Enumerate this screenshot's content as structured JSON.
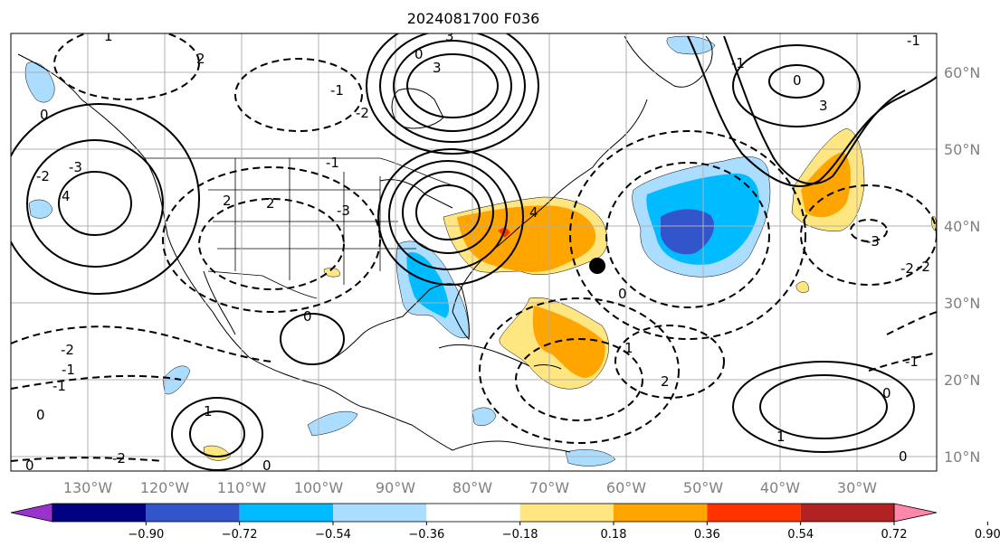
{
  "title": "2024081700 F036",
  "lon_labels": [
    "130°W",
    "120°W",
    "110°W",
    "100°W",
    "90°W",
    "80°W",
    "70°W",
    "60°W",
    "50°W",
    "40°W",
    "30°W"
  ],
  "lat_labels": [
    "60°N",
    "50°N",
    "40°N",
    "30°N",
    "20°N",
    "10°N"
  ],
  "colorbar": {
    "ticks": [
      "−0.90",
      "−0.72",
      "−0.54",
      "−0.36",
      "−0.18",
      "0.18",
      "0.36",
      "0.54",
      "0.72",
      "0.90"
    ],
    "colors": [
      "#9933cc",
      "#000080",
      "#3355cc",
      "#00bbff",
      "#aaddff",
      "#ffffff",
      "#ffe680",
      "#ffa500",
      "#ff3300",
      "#b22222",
      "#ff88aa"
    ]
  },
  "contour_labels": [
    "0",
    "-2",
    "4",
    "-3",
    "2",
    "3",
    "1",
    "-1",
    "0",
    "-2",
    "3",
    "-1",
    "2",
    "0",
    "-1",
    "-2",
    "-3",
    "4",
    "0",
    "-3",
    "-2",
    "1",
    "-1",
    "0",
    "2",
    "3",
    "-1",
    "0",
    "1",
    "-2",
    "0",
    "0",
    "1",
    "-1",
    "-2",
    "0",
    "-1",
    "0",
    "2"
  ],
  "marker": {
    "label": "black-dot",
    "lon": -65,
    "lat": 35
  }
}
